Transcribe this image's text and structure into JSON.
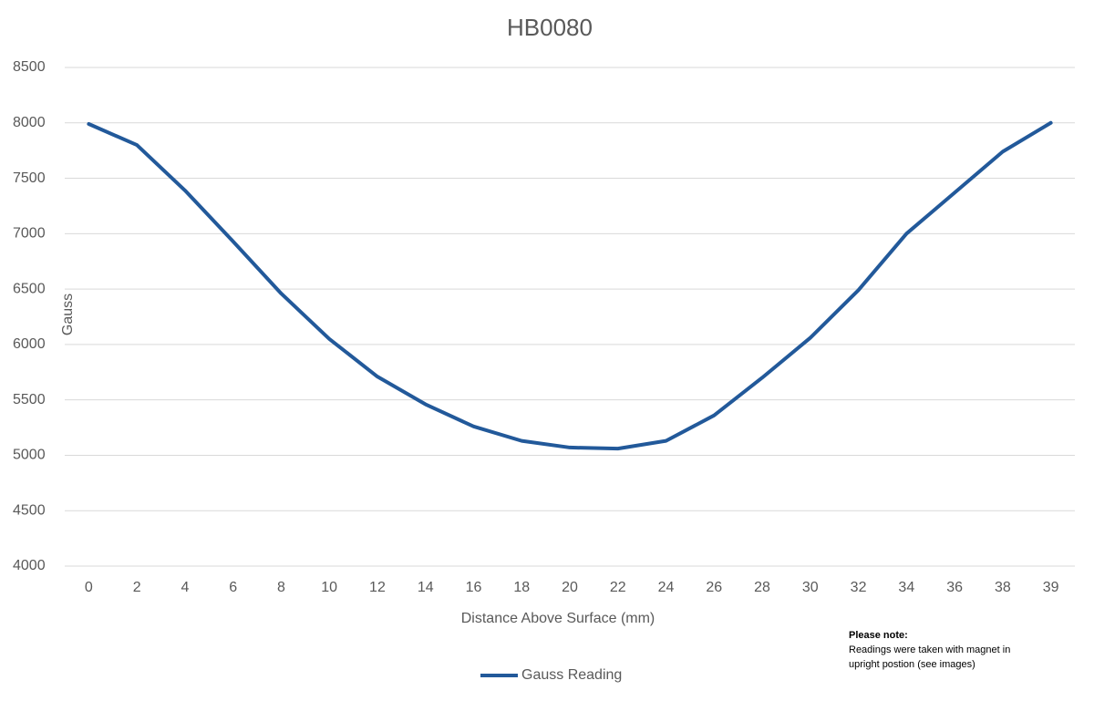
{
  "chart_data": {
    "type": "line",
    "title": "HB0080",
    "x_label": "Distance Above Surface (mm)",
    "y_label": "Gauss",
    "categories": [
      "0",
      "2",
      "4",
      "6",
      "8",
      "10",
      "12",
      "14",
      "16",
      "18",
      "20",
      "22",
      "24",
      "26",
      "28",
      "30",
      "32",
      "34",
      "36",
      "38",
      "39"
    ],
    "series": [
      {
        "name": "Gauss Reading",
        "color": "#22599a",
        "values": [
          7990,
          7800,
          7390,
          6930,
          6460,
          6050,
          5710,
          5460,
          5260,
          5130,
          5070,
          5060,
          5130,
          5360,
          5700,
          6060,
          6490,
          7000,
          7370,
          7740,
          8000
        ]
      }
    ],
    "ylim": [
      4000,
      8500
    ],
    "yticks": [
      4000,
      4500,
      5000,
      5500,
      6000,
      6500,
      7000,
      7500,
      8000,
      8500
    ],
    "grid": true,
    "legend": "bottom",
    "annotation": {
      "title": "Please note:",
      "lines": [
        "Readings were taken with magnet in",
        "upright postion (see images)"
      ]
    }
  }
}
